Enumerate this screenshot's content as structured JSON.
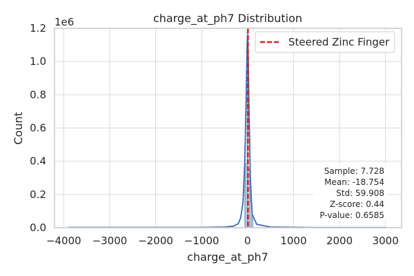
{
  "chart_data": {
    "type": "bar",
    "title": "charge_at_ph7 Distribution",
    "xlabel": "charge_at_ph7",
    "ylabel": "Count",
    "y_offset_label": "1e6",
    "xlim": [
      -4200,
      3350
    ],
    "ylim": [
      0,
      1.2
    ],
    "x_ticks": [
      -4000,
      -3000,
      -2000,
      -1000,
      0,
      1000,
      2000,
      3000
    ],
    "x_tick_labels": [
      "−4000",
      "−3000",
      "−2000",
      "−1000",
      "0",
      "1000",
      "2000",
      "3000"
    ],
    "y_ticks": [
      0.0,
      0.2,
      0.4,
      0.6,
      0.8,
      1.0,
      1.2
    ],
    "y_tick_labels": [
      "0.0",
      "0.2",
      "0.4",
      "0.6",
      "0.8",
      "1.0",
      "1.2"
    ],
    "grid": true,
    "histogram_bins": [
      {
        "x0": -75,
        "x1": -25,
        "count": 0.39
      },
      {
        "x0": -25,
        "x1": 25,
        "count": 1.18
      },
      {
        "x0": 25,
        "x1": 75,
        "count": 0.36
      },
      {
        "x0": 75,
        "x1": 125,
        "count": 0.08
      }
    ],
    "kde_points": [
      [
        -3900,
        0.002
      ],
      [
        -1000,
        0.002
      ],
      [
        -500,
        0.004
      ],
      [
        -300,
        0.01
      ],
      [
        -200,
        0.025
      ],
      [
        -150,
        0.06
      ],
      [
        -100,
        0.15
      ],
      [
        -60,
        0.4
      ],
      [
        -30,
        0.8
      ],
      [
        -10,
        1.1
      ],
      [
        0,
        1.15
      ],
      [
        10,
        1.1
      ],
      [
        30,
        0.75
      ],
      [
        60,
        0.3
      ],
      [
        100,
        0.08
      ],
      [
        200,
        0.02
      ],
      [
        500,
        0.004
      ],
      [
        1500,
        0.001
      ],
      [
        3000,
        0.001
      ]
    ],
    "reference_line": {
      "x": 7.728,
      "label": "Steered Zinc Finger",
      "color": "#e31a1c"
    },
    "legend": {
      "position": "top-right",
      "entries": [
        "Steered Zinc Finger"
      ]
    },
    "stats_box": {
      "position": "bottom-right",
      "lines": [
        "Sample: 7.728",
        "Mean: -18.754",
        "Std: 59.908",
        "Z-score: 0.44",
        "P-value: 0.6585"
      ]
    },
    "colors": {
      "bars": "#7fa5d0",
      "kde": "#3b6aa8",
      "reference": "#e31a1c",
      "grid": "#d9d9d9",
      "axes_edge": "#cccccc"
    }
  }
}
